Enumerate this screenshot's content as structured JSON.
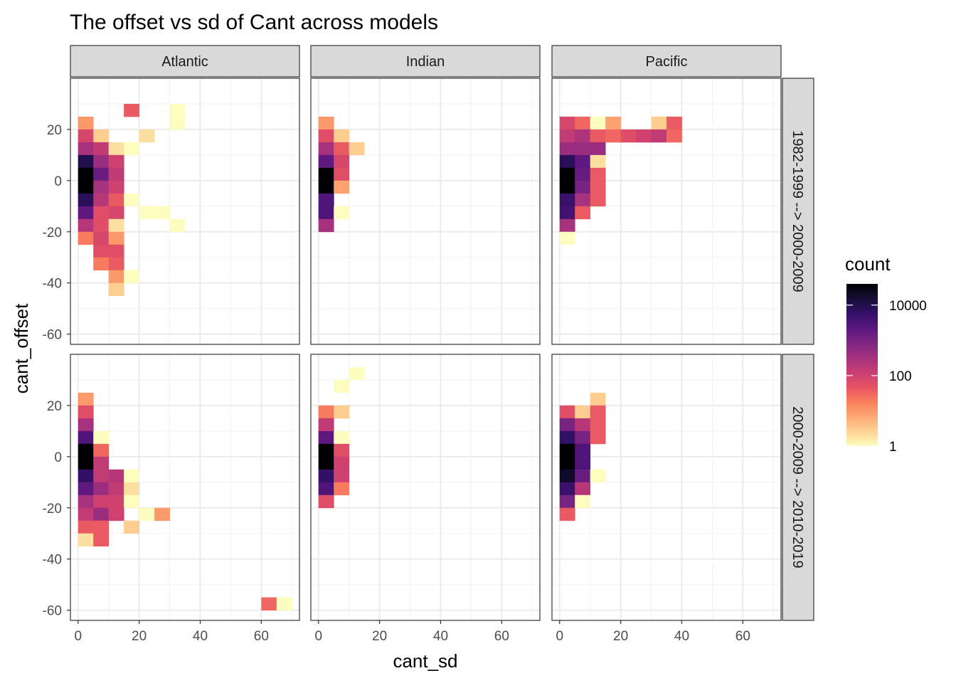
{
  "chart_data": {
    "type": "heatmap",
    "title": "The offset vs sd of Cant across models",
    "xlabel": "cant_sd",
    "ylabel": "cant_offset",
    "xlim": [
      -2.5,
      72.5
    ],
    "ylim": [
      -64,
      40
    ],
    "x_ticks": [
      0,
      20,
      40,
      60
    ],
    "y_ticks": [
      -60,
      -40,
      -20,
      0,
      20
    ],
    "bin_width_x": 5,
    "bin_width_y": 5,
    "columns": [
      "Atlantic",
      "Indian",
      "Pacific"
    ],
    "rows": [
      "1982-1999 --> 2000-2009",
      "2000-2009 --> 2010-2019"
    ],
    "legend": {
      "title": "count",
      "scale": "log10",
      "domain": [
        1,
        40000
      ],
      "breaks": [
        1,
        100,
        10000
      ],
      "break_labels": [
        "1",
        "100",
        "10000"
      ],
      "colors": [
        "#FCFDBF",
        "#FED395",
        "#FEA973",
        "#FA7F5E",
        "#E75263",
        "#C83E73",
        "#A3307E",
        "#7E2482",
        "#5A167E",
        "#331068",
        "#150E37",
        "#000004"
      ]
    },
    "panels": [
      {
        "column": "Atlantic",
        "row": "1982-1999 --> 2000-2009",
        "bins": [
          [
            17.5,
            27.5,
            40
          ],
          [
            32.5,
            27.5,
            1
          ],
          [
            32.5,
            22.5,
            1
          ],
          [
            2.5,
            22.5,
            10
          ],
          [
            2.5,
            17.5,
            80
          ],
          [
            7.5,
            17.5,
            3
          ],
          [
            22.5,
            17.5,
            2
          ],
          [
            2.5,
            12.5,
            300
          ],
          [
            7.5,
            12.5,
            150
          ],
          [
            12.5,
            12.5,
            2
          ],
          [
            17.5,
            12.5,
            1
          ],
          [
            2.5,
            7.5,
            10000
          ],
          [
            7.5,
            7.5,
            400
          ],
          [
            12.5,
            7.5,
            100
          ],
          [
            2.5,
            2.5,
            60000
          ],
          [
            7.5,
            2.5,
            1500
          ],
          [
            12.5,
            2.5,
            150
          ],
          [
            2.5,
            -2.5,
            40000
          ],
          [
            7.5,
            -2.5,
            300
          ],
          [
            12.5,
            -2.5,
            100
          ],
          [
            2.5,
            -7.5,
            8000
          ],
          [
            7.5,
            -7.5,
            200
          ],
          [
            12.5,
            -7.5,
            40
          ],
          [
            17.5,
            -7.5,
            1
          ],
          [
            2.5,
            -12.5,
            2000
          ],
          [
            7.5,
            -12.5,
            60
          ],
          [
            12.5,
            -12.5,
            80
          ],
          [
            22.5,
            -12.5,
            1
          ],
          [
            27.5,
            -12.5,
            1
          ],
          [
            2.5,
            -17.5,
            200
          ],
          [
            7.5,
            -17.5,
            60
          ],
          [
            12.5,
            -17.5,
            2
          ],
          [
            32.5,
            -17.5,
            1
          ],
          [
            2.5,
            -22.5,
            20
          ],
          [
            7.5,
            -22.5,
            80
          ],
          [
            12.5,
            -22.5,
            10
          ],
          [
            7.5,
            -27.5,
            60
          ],
          [
            12.5,
            -27.5,
            60
          ],
          [
            7.5,
            -32.5,
            20
          ],
          [
            12.5,
            -32.5,
            40
          ],
          [
            12.5,
            -37.5,
            10
          ],
          [
            17.5,
            -37.5,
            1
          ],
          [
            12.5,
            -42.5,
            3
          ]
        ]
      },
      {
        "column": "Indian",
        "row": "1982-1999 --> 2000-2009",
        "bins": [
          [
            2.5,
            22.5,
            10
          ],
          [
            2.5,
            17.5,
            60
          ],
          [
            7.5,
            17.5,
            3
          ],
          [
            2.5,
            12.5,
            300
          ],
          [
            7.5,
            12.5,
            40
          ],
          [
            12.5,
            12.5,
            3
          ],
          [
            2.5,
            7.5,
            2000
          ],
          [
            7.5,
            7.5,
            80
          ],
          [
            2.5,
            2.5,
            60000
          ],
          [
            7.5,
            2.5,
            60
          ],
          [
            2.5,
            -2.5,
            50000
          ],
          [
            7.5,
            -2.5,
            8
          ],
          [
            2.5,
            -7.5,
            3000
          ],
          [
            2.5,
            -12.5,
            3000
          ],
          [
            7.5,
            -12.5,
            1
          ],
          [
            2.5,
            -17.5,
            300
          ]
        ]
      },
      {
        "column": "Pacific",
        "row": "1982-1999 --> 2000-2009",
        "bins": [
          [
            2.5,
            22.5,
            80
          ],
          [
            7.5,
            22.5,
            30
          ],
          [
            12.5,
            22.5,
            1
          ],
          [
            17.5,
            22.5,
            8
          ],
          [
            32.5,
            22.5,
            3
          ],
          [
            37.5,
            22.5,
            40
          ],
          [
            2.5,
            17.5,
            150
          ],
          [
            7.5,
            17.5,
            250
          ],
          [
            12.5,
            17.5,
            40
          ],
          [
            17.5,
            17.5,
            30
          ],
          [
            22.5,
            17.5,
            60
          ],
          [
            27.5,
            17.5,
            100
          ],
          [
            32.5,
            17.5,
            150
          ],
          [
            37.5,
            17.5,
            30
          ],
          [
            2.5,
            12.5,
            400
          ],
          [
            7.5,
            12.5,
            400
          ],
          [
            12.5,
            12.5,
            400
          ],
          [
            2.5,
            7.5,
            8000
          ],
          [
            7.5,
            7.5,
            2000
          ],
          [
            12.5,
            7.5,
            2
          ],
          [
            2.5,
            2.5,
            60000
          ],
          [
            7.5,
            2.5,
            1500
          ],
          [
            12.5,
            2.5,
            40
          ],
          [
            2.5,
            -2.5,
            50000
          ],
          [
            7.5,
            -2.5,
            1000
          ],
          [
            12.5,
            -2.5,
            40
          ],
          [
            2.5,
            -7.5,
            5000
          ],
          [
            7.5,
            -7.5,
            300
          ],
          [
            12.5,
            -7.5,
            40
          ],
          [
            2.5,
            -12.5,
            4000
          ],
          [
            7.5,
            -12.5,
            40
          ],
          [
            2.5,
            -17.5,
            300
          ],
          [
            2.5,
            -22.5,
            1
          ]
        ]
      },
      {
        "column": "Atlantic",
        "row": "2000-2009 --> 2010-2019",
        "bins": [
          [
            2.5,
            22.5,
            10
          ],
          [
            2.5,
            17.5,
            60
          ],
          [
            2.5,
            12.5,
            300
          ],
          [
            2.5,
            7.5,
            3000
          ],
          [
            7.5,
            7.5,
            1
          ],
          [
            2.5,
            2.5,
            60000
          ],
          [
            7.5,
            2.5,
            30
          ],
          [
            2.5,
            -2.5,
            60000
          ],
          [
            7.5,
            -2.5,
            150
          ],
          [
            2.5,
            -7.5,
            6000
          ],
          [
            7.5,
            -7.5,
            150
          ],
          [
            12.5,
            -7.5,
            200
          ],
          [
            17.5,
            -7.5,
            1
          ],
          [
            2.5,
            -12.5,
            2000
          ],
          [
            7.5,
            -12.5,
            400
          ],
          [
            12.5,
            -12.5,
            150
          ],
          [
            17.5,
            -12.5,
            2
          ],
          [
            2.5,
            -17.5,
            300
          ],
          [
            7.5,
            -17.5,
            100
          ],
          [
            12.5,
            -17.5,
            100
          ],
          [
            17.5,
            -17.5,
            1
          ],
          [
            2.5,
            -22.5,
            150
          ],
          [
            7.5,
            -22.5,
            400
          ],
          [
            12.5,
            -22.5,
            100
          ],
          [
            22.5,
            -22.5,
            1
          ],
          [
            27.5,
            -22.5,
            10
          ],
          [
            2.5,
            -27.5,
            40
          ],
          [
            7.5,
            -27.5,
            40
          ],
          [
            17.5,
            -27.5,
            3
          ],
          [
            2.5,
            -32.5,
            2
          ],
          [
            7.5,
            -32.5,
            40
          ],
          [
            62.5,
            -57.5,
            30
          ],
          [
            67.5,
            -57.5,
            1
          ]
        ]
      },
      {
        "column": "Indian",
        "row": "2000-2009 --> 2010-2019",
        "bins": [
          [
            12.5,
            32.5,
            1
          ],
          [
            7.5,
            27.5,
            1
          ],
          [
            2.5,
            17.5,
            20
          ],
          [
            7.5,
            17.5,
            3
          ],
          [
            2.5,
            12.5,
            150
          ],
          [
            2.5,
            7.5,
            2000
          ],
          [
            7.5,
            7.5,
            1
          ],
          [
            2.5,
            2.5,
            40000
          ],
          [
            7.5,
            2.5,
            60
          ],
          [
            2.5,
            -2.5,
            60000
          ],
          [
            7.5,
            -2.5,
            100
          ],
          [
            2.5,
            -7.5,
            6000
          ],
          [
            7.5,
            -7.5,
            100
          ],
          [
            2.5,
            -12.5,
            3000
          ],
          [
            7.5,
            -12.5,
            20
          ],
          [
            2.5,
            -17.5,
            60
          ]
        ]
      },
      {
        "column": "Pacific",
        "row": "2000-2009 --> 2010-2019",
        "bins": [
          [
            12.5,
            22.5,
            3
          ],
          [
            2.5,
            17.5,
            60
          ],
          [
            7.5,
            17.5,
            3
          ],
          [
            12.5,
            17.5,
            40
          ],
          [
            2.5,
            12.5,
            1000
          ],
          [
            7.5,
            12.5,
            200
          ],
          [
            12.5,
            12.5,
            40
          ],
          [
            2.5,
            7.5,
            6000
          ],
          [
            7.5,
            7.5,
            1000
          ],
          [
            12.5,
            7.5,
            40
          ],
          [
            2.5,
            2.5,
            60000
          ],
          [
            7.5,
            2.5,
            3000
          ],
          [
            2.5,
            -2.5,
            60000
          ],
          [
            7.5,
            -2.5,
            3000
          ],
          [
            2.5,
            -7.5,
            20000
          ],
          [
            7.5,
            -7.5,
            1500
          ],
          [
            12.5,
            -7.5,
            1
          ],
          [
            2.5,
            -12.5,
            5000
          ],
          [
            7.5,
            -12.5,
            200
          ],
          [
            2.5,
            -17.5,
            1000
          ],
          [
            7.5,
            -17.5,
            1
          ],
          [
            2.5,
            -22.5,
            40
          ]
        ]
      }
    ]
  }
}
